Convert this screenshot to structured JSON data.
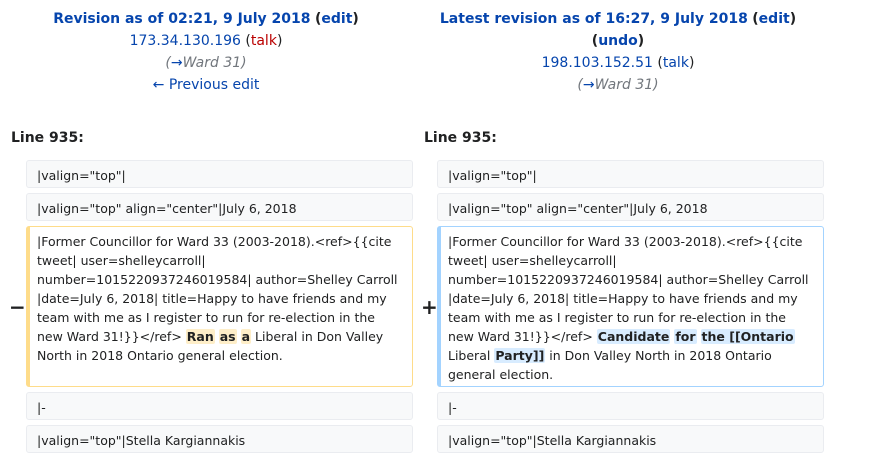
{
  "left_header": {
    "revision_label": "Revision as of 02:21, 9 July 2018",
    "edit_link": "edit",
    "user": "173.34.130.196",
    "talk_link": "talk",
    "summary_arrow": "→",
    "summary_section": "Ward 31",
    "previous_edit": "← Previous edit"
  },
  "right_header": {
    "revision_label": "Latest revision as of 16:27, 9 July 2018",
    "edit_link": "edit",
    "undo_link": "undo",
    "user": "198.103.152.51",
    "talk_link": "talk",
    "summary_arrow": "→",
    "summary_section": "Ward 31"
  },
  "line_label_left": "Line 935:",
  "line_label_right": "Line 935:",
  "diff": {
    "row1_text": "|valign=\"top\"|",
    "row2_text": "|valign=\"top\" align=\"center\"|July 6, 2018",
    "changed_prefix": "|Former Councillor for Ward 33 (2003-2018).<ref>{{cite tweet| user=shelleycarroll| number=1015220937246019584| author=Shelley Carroll |date=July 6, 2018| title=Happy to have friends and my team with me as I register to run for re-election in the new Ward 31!}}</ref>",
    "deleted_marker": "−",
    "added_marker": "+",
    "left_del_1": "Ran",
    "left_del_2": "as",
    "left_del_3": "a",
    "left_mid": "Liberal",
    "left_suffix": "in Don Valley North in 2018 Ontario general election.",
    "right_ins_1": "Candidate",
    "right_ins_2": "for",
    "right_ins_3": "the [[Ontario",
    "right_mid": "Liberal",
    "right_ins_4": "Party]]",
    "right_suffix": "in Don Valley North in 2018 Ontario general election.",
    "row4_text": "|-",
    "row5_text": "|valign=\"top\"|Stella Kargiannakis"
  }
}
